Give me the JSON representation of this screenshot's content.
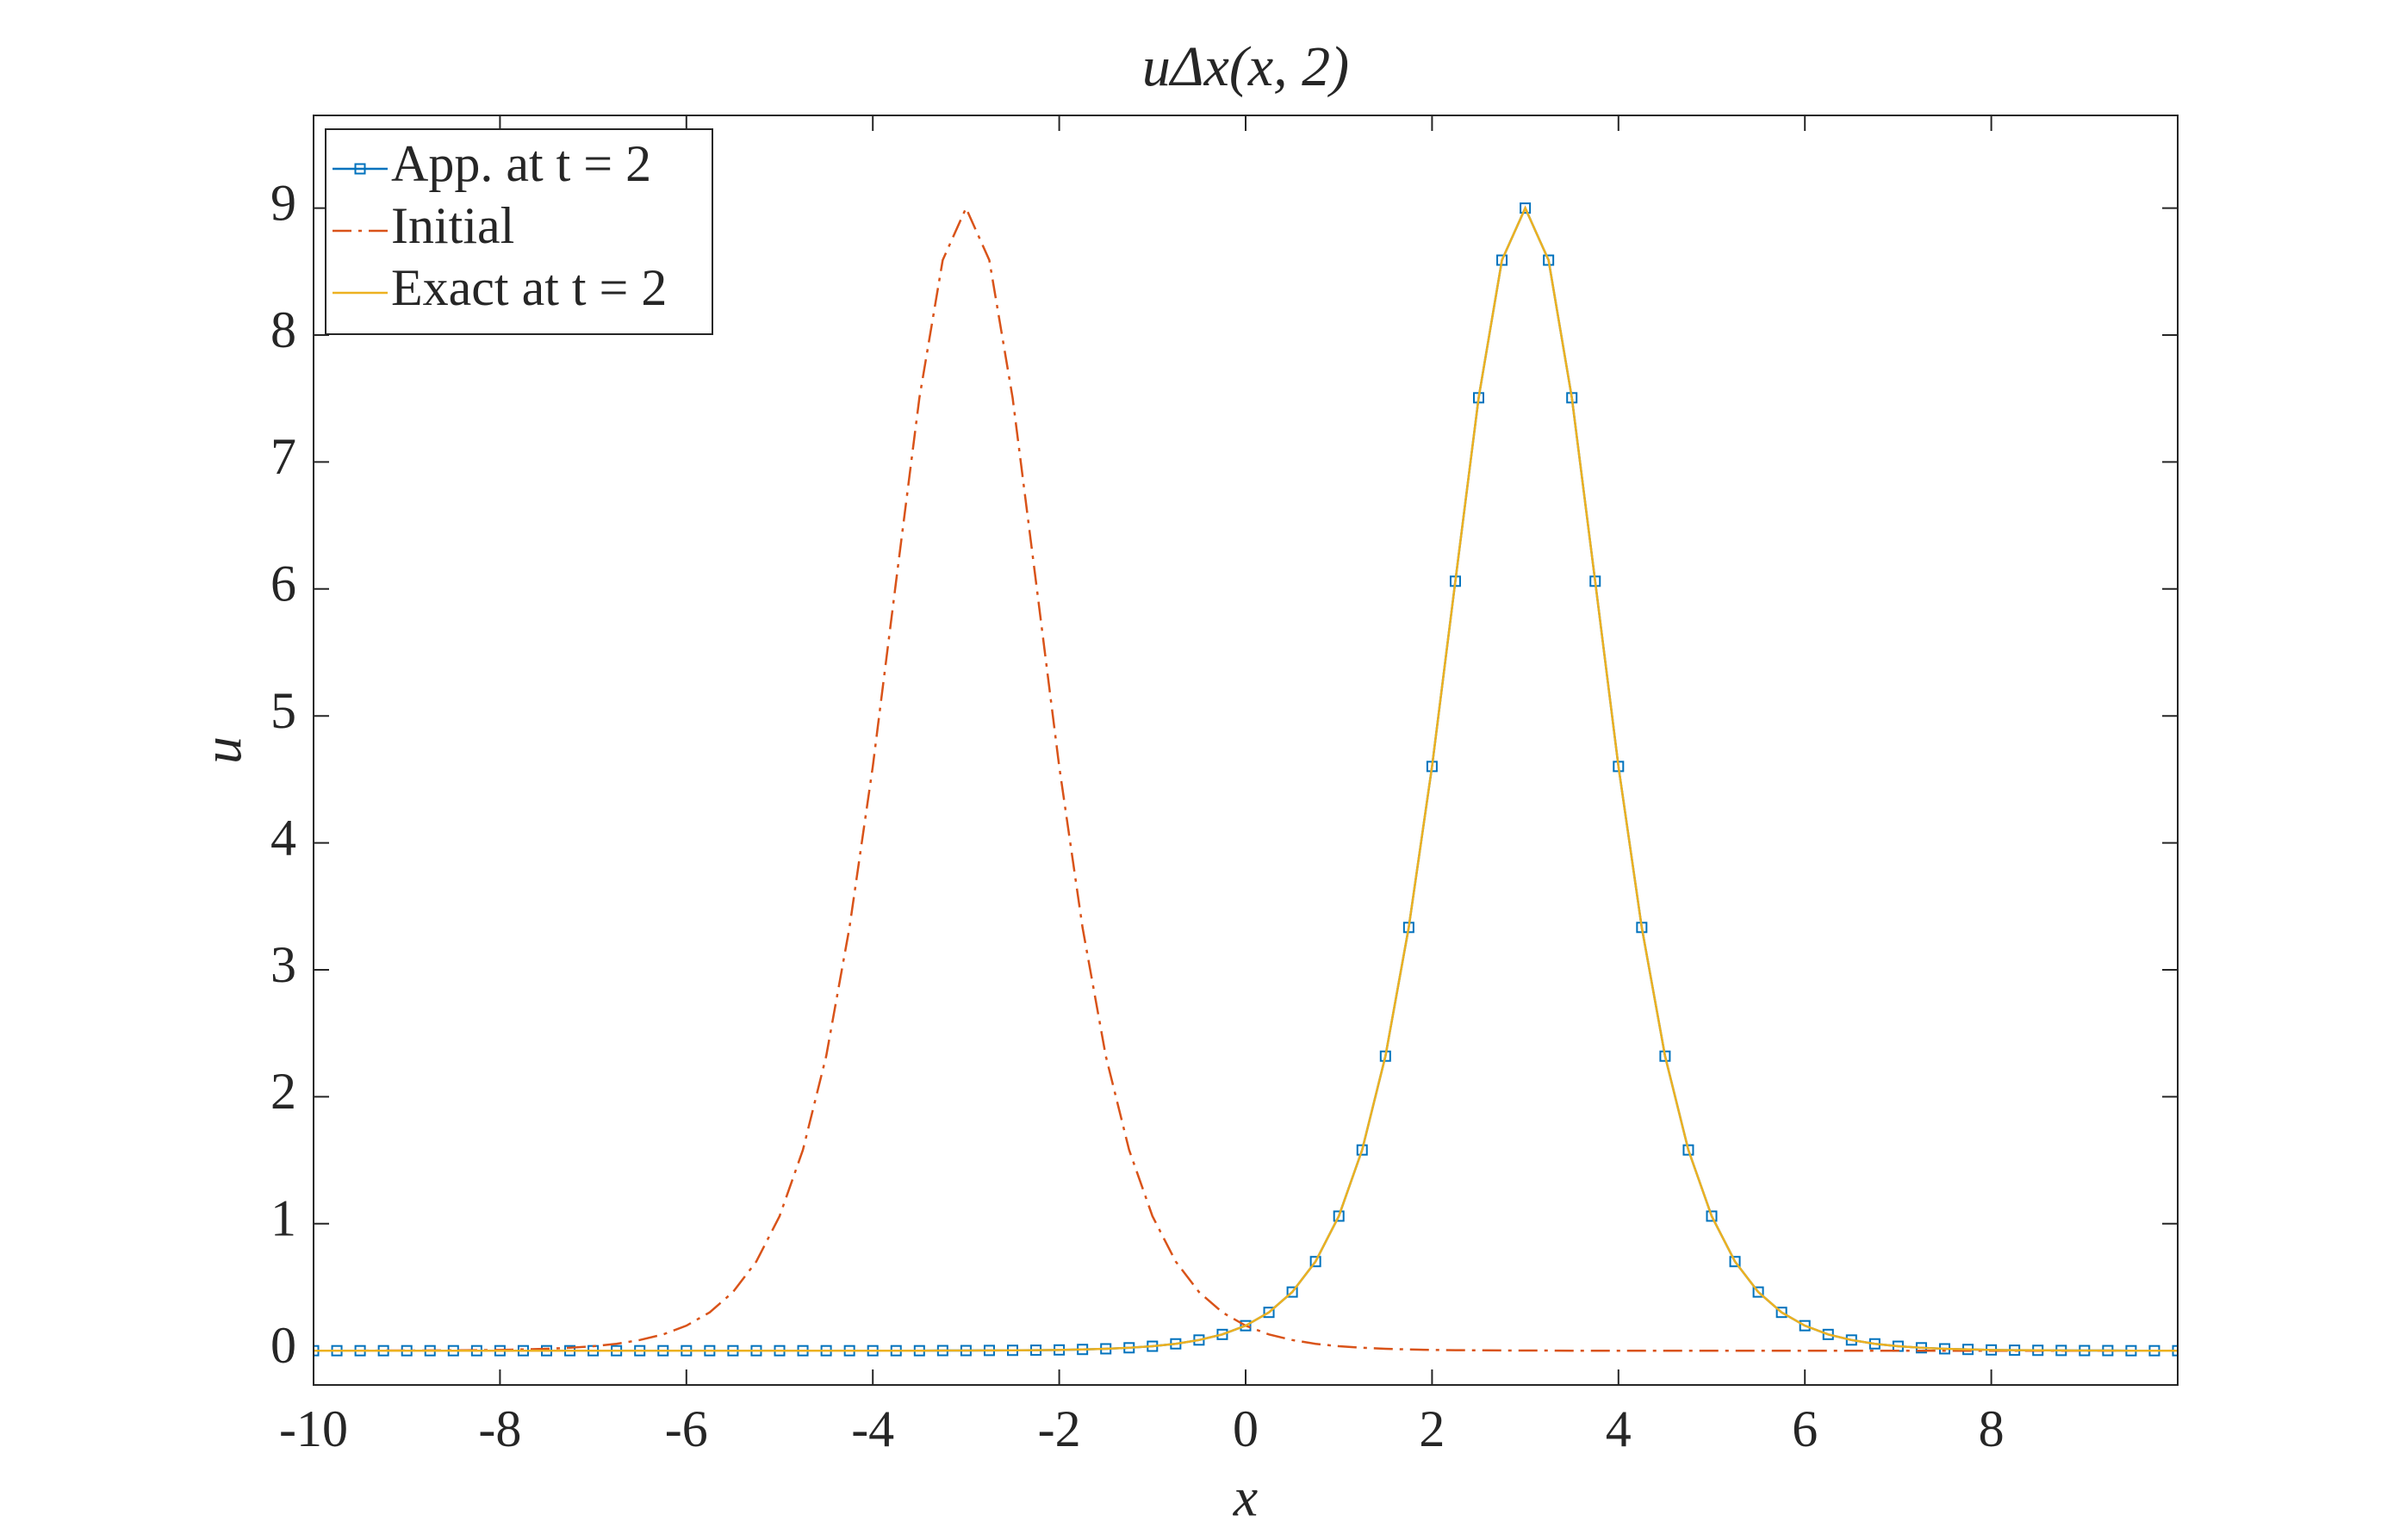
{
  "chart_data": {
    "type": "line",
    "title": "uΔx(x, 2)",
    "x_label": "x",
    "y_label": "u",
    "x": [
      -10,
      -9.75,
      -9.5,
      -9.25,
      -9,
      -8.75,
      -8.5,
      -8.25,
      -8,
      -7.75,
      -7.5,
      -7.25,
      -7,
      -6.75,
      -6.5,
      -6.25,
      -6,
      -5.75,
      -5.5,
      -5.25,
      -5,
      -4.75,
      -4.5,
      -4.25,
      -4,
      -3.75,
      -3.5,
      -3.25,
      -3,
      -2.75,
      -2.5,
      -2.25,
      -2,
      -1.75,
      -1.5,
      -1.25,
      -1,
      -0.75,
      -0.5,
      -0.25,
      0,
      0.25,
      0.5,
      0.75,
      1,
      1.25,
      1.5,
      1.75,
      2,
      2.25,
      2.5,
      2.75,
      3,
      3.25,
      3.5,
      3.75,
      4,
      4.25,
      4.5,
      4.75,
      5,
      5.25,
      5.5,
      5.75,
      6,
      6.25,
      6.5,
      6.75,
      7,
      7.25,
      7.5,
      7.75,
      8,
      8.25,
      8.5,
      8.75,
      9,
      9.25,
      9.5,
      9.75,
      10
    ],
    "series": [
      {
        "name": "App. at t = 2",
        "color": "#0072bd",
        "style": "line-markers",
        "values": [
          0,
          0,
          0,
          0,
          0,
          0,
          0,
          0,
          0,
          0,
          0,
          0,
          0,
          0,
          0,
          0,
          0,
          0,
          0,
          0,
          0,
          0,
          0,
          0,
          0,
          0,
          0,
          0.001,
          0.001,
          0.002,
          0.003,
          0.004,
          0.006,
          0.01,
          0.015,
          0.023,
          0.035,
          0.054,
          0.084,
          0.128,
          0.197,
          0.302,
          0.462,
          0.702,
          1.06,
          1.581,
          2.32,
          3.334,
          4.602,
          6.061,
          7.506,
          8.59,
          9,
          8.59,
          7.506,
          6.061,
          4.602,
          3.334,
          2.32,
          1.581,
          1.06,
          0.702,
          0.462,
          0.302,
          0.197,
          0.128,
          0.084,
          0.054,
          0.035,
          0.023,
          0.015,
          0.01,
          0.006,
          0.004,
          0.003,
          0.002,
          0.001,
          0.001,
          0,
          0,
          0
        ]
      },
      {
        "name": "Initial",
        "color": "#d95319",
        "style": "dash-dot",
        "values": [
          0,
          0,
          0,
          0.001,
          0.001,
          0.002,
          0.003,
          0.004,
          0.006,
          0.01,
          0.015,
          0.023,
          0.035,
          0.054,
          0.084,
          0.128,
          0.197,
          0.302,
          0.462,
          0.702,
          1.06,
          1.581,
          2.32,
          3.334,
          4.602,
          6.061,
          7.506,
          8.59,
          9,
          8.59,
          7.506,
          6.061,
          4.602,
          3.334,
          2.32,
          1.581,
          1.06,
          0.702,
          0.462,
          0.302,
          0.197,
          0.128,
          0.084,
          0.054,
          0.035,
          0.023,
          0.015,
          0.01,
          0.006,
          0.004,
          0.003,
          0.002,
          0.001,
          0.001,
          0,
          0,
          0,
          0,
          0,
          0,
          0,
          0,
          0,
          0,
          0,
          0,
          0,
          0,
          0,
          0,
          0,
          0,
          0,
          0,
          0,
          0,
          0,
          0,
          0,
          0,
          0
        ]
      },
      {
        "name": "Exact at t = 2",
        "color": "#edb120",
        "style": "line",
        "values": [
          0,
          0,
          0,
          0,
          0,
          0,
          0,
          0,
          0,
          0,
          0,
          0,
          0,
          0,
          0,
          0,
          0,
          0,
          0,
          0,
          0,
          0,
          0,
          0,
          0,
          0,
          0,
          0.001,
          0.001,
          0.002,
          0.003,
          0.004,
          0.006,
          0.01,
          0.015,
          0.023,
          0.035,
          0.054,
          0.084,
          0.128,
          0.197,
          0.302,
          0.462,
          0.702,
          1.06,
          1.581,
          2.32,
          3.334,
          4.602,
          6.061,
          7.506,
          8.59,
          9,
          8.59,
          7.506,
          6.061,
          4.602,
          3.334,
          2.32,
          1.581,
          1.06,
          0.702,
          0.462,
          0.302,
          0.197,
          0.128,
          0.084,
          0.054,
          0.035,
          0.023,
          0.015,
          0.01,
          0.006,
          0.004,
          0.003,
          0.002,
          0.001,
          0.001,
          0,
          0,
          0
        ]
      }
    ],
    "xlim": [
      -10,
      10
    ],
    "ylim": [
      -0.27,
      9.73
    ],
    "xticks": [
      -10,
      -8,
      -6,
      -4,
      -2,
      0,
      2,
      4,
      6,
      8
    ],
    "yticks": [
      0,
      1,
      2,
      3,
      4,
      5,
      6,
      7,
      8,
      9
    ],
    "legend": "top-left",
    "grid": false
  }
}
